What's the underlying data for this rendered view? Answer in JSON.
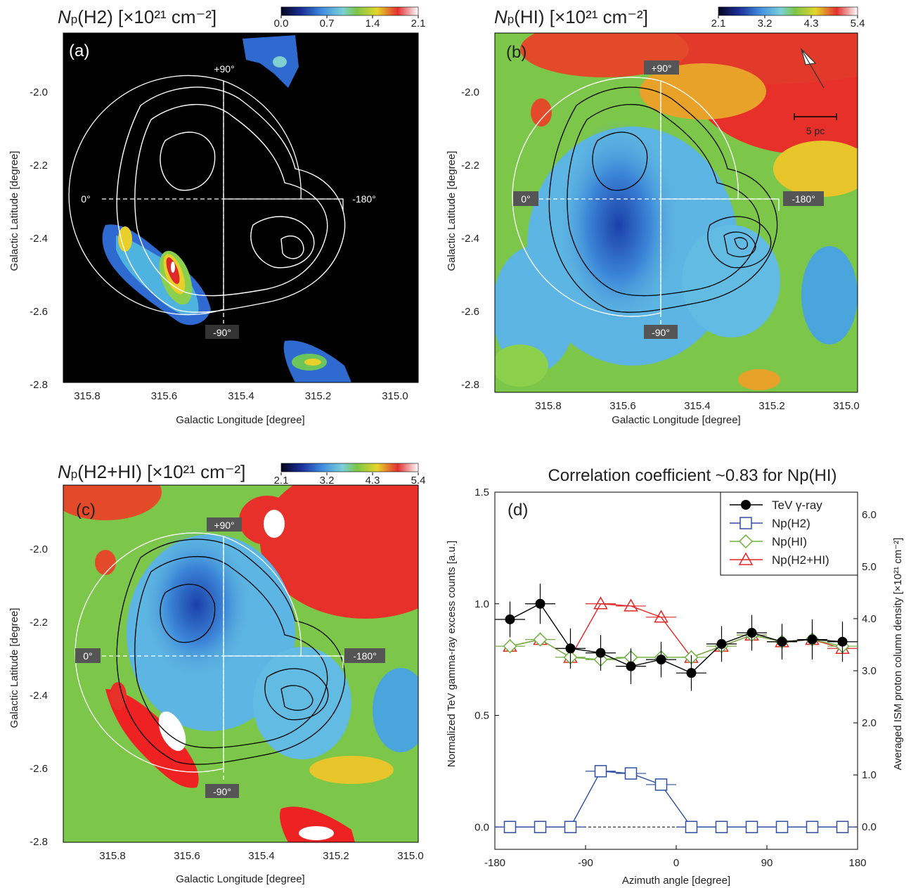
{
  "colors": {
    "black": "#000000",
    "white": "#ffffff",
    "tev": "#000000",
    "h2": "#2f4fa0",
    "hi": "#6db33f",
    "h2hi": "#e32626",
    "bg_gray": "#6d6d6d",
    "label_bg": "#5a5a5a"
  },
  "panels": {
    "a": {
      "letter": "(a)",
      "title_sym": "N",
      "title_sub": "p",
      "title_rest": "(H2) [×10²¹ cm⁻²]",
      "cbar_ticks": [
        "0.0",
        "0.7",
        "1.4",
        "2.1"
      ],
      "xlabel": "Galactic Longitude [degree]",
      "ylabel": "Galactic Latitude [degree]",
      "xticks": [
        "315.8",
        "315.6",
        "315.4",
        "315.2",
        "315.0"
      ],
      "yticks": [
        "-2.0",
        "-2.2",
        "-2.4",
        "-2.6",
        "-2.8"
      ],
      "az_labels": {
        "top": "+90°",
        "bottom": "-90°",
        "left": "0°",
        "right": "-180°"
      }
    },
    "b": {
      "letter": "(b)",
      "title_sym": "N",
      "title_sub": "p",
      "title_rest": "(HI) [×10²¹ cm⁻²]",
      "cbar_ticks": [
        "2.1",
        "3.2",
        "4.3",
        "5.4"
      ],
      "xlabel": "Galactic Longitude [degree]",
      "ylabel": "Galactic Latitude [degree]",
      "xticks": [
        "315.8",
        "315.6",
        "315.4",
        "315.2",
        "315.0"
      ],
      "yticks": [
        "-2.0",
        "-2.2",
        "-2.4",
        "-2.6",
        "-2.8"
      ],
      "az_labels": {
        "top": "+90°",
        "bottom": "-90°",
        "left": "0°",
        "right": "-180°"
      },
      "scalebar": "5 pc"
    },
    "c": {
      "letter": "(c)",
      "title_sym": "N",
      "title_sub": "p",
      "title_rest": "(H2+HI) [×10²¹ cm⁻²]",
      "cbar_ticks": [
        "2.1",
        "3.2",
        "4.3",
        "5.4"
      ],
      "xlabel": "Galactic Longitude [degree]",
      "ylabel": "Galactic Latitude [degree]",
      "xticks": [
        "315.8",
        "315.6",
        "315.4",
        "315.2",
        "315.0"
      ],
      "yticks": [
        "-2.0",
        "-2.2",
        "-2.4",
        "-2.6",
        "-2.8"
      ],
      "az_labels": {
        "top": "+90°",
        "bottom": "-90°",
        "left": "0°",
        "right": "-180°"
      }
    }
  },
  "chart_data": {
    "type": "line",
    "letter": "(d)",
    "title": "Correlation coefficient ~0.83 for Np(HI)",
    "xlabel": "Azimuth angle [degree]",
    "ylabel": "Normalized TeV gamma-ray excess counts [a.u.]",
    "y2label": "Averaged ISM proton column density [×10²¹ cm⁻²]",
    "xlim": [
      -180,
      180
    ],
    "ylim": [
      -0.1,
      1.5
    ],
    "y2lim": [
      -0.4286,
      6.4286
    ],
    "xticks": [
      "-180",
      "-90",
      "0",
      "90",
      "180"
    ],
    "yticks": [
      "0.0",
      "0.5",
      "1.0",
      "1.5"
    ],
    "y2ticks": [
      "0.0",
      "1.0",
      "2.0",
      "3.0",
      "4.0",
      "5.0",
      "6.0"
    ],
    "x": [
      -165,
      -135,
      -105,
      -75,
      -45,
      -15,
      15,
      45,
      75,
      105,
      135,
      165
    ],
    "xerr": 15,
    "series": [
      {
        "name": "TeV γ-ray",
        "marker": "circle",
        "values": [
          0.93,
          1.0,
          0.8,
          0.78,
          0.72,
          0.75,
          0.69,
          0.82,
          0.87,
          0.83,
          0.84,
          0.83
        ],
        "yerr": [
          0.08,
          0.09,
          0.09,
          0.08,
          0.08,
          0.08,
          0.08,
          0.08,
          0.08,
          0.08,
          0.09,
          0.09
        ]
      },
      {
        "name": "Np(H2)",
        "marker": "square",
        "values": [
          0,
          0,
          0,
          0.25,
          0.24,
          0.19,
          0,
          0,
          0,
          0,
          0,
          0
        ]
      },
      {
        "name": "Np(HI)",
        "marker": "diamond",
        "values": [
          0.81,
          0.84,
          0.76,
          0.75,
          0.76,
          0.76,
          0.76,
          0.81,
          0.86,
          0.83,
          0.84,
          0.81
        ]
      },
      {
        "name": "Np(H2+HI)",
        "marker": "triangle",
        "values": [
          0.81,
          0.84,
          0.76,
          1.0,
          0.99,
          0.94,
          0.76,
          0.81,
          0.86,
          0.83,
          0.84,
          0.8
        ]
      }
    ]
  }
}
